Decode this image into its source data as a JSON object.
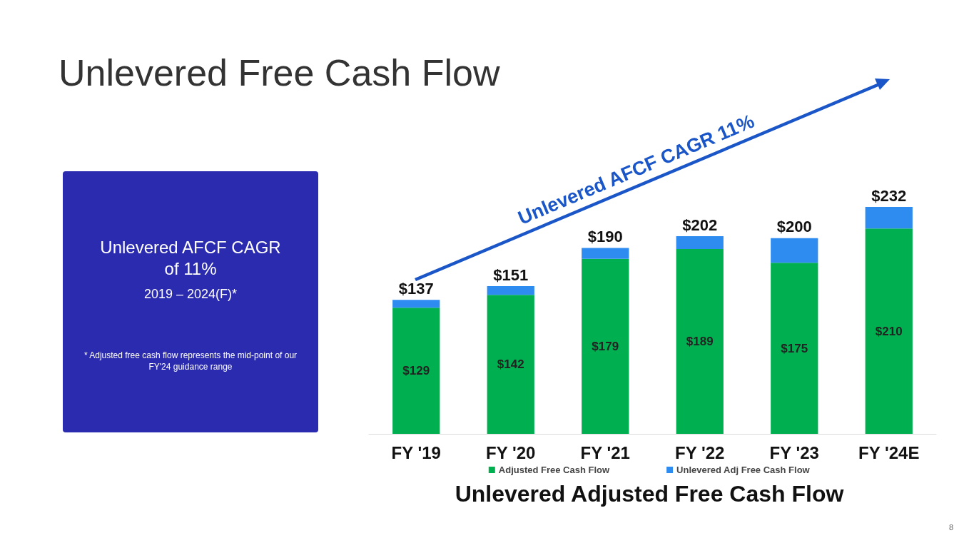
{
  "chart_data": {
    "type": "bar",
    "title": "Unlevered Free Cash Flow",
    "xlabel": "Unlevered Adjusted Free Cash Flow",
    "categories": [
      "FY '19",
      "FY '20",
      "FY '21",
      "FY '22",
      "FY '23",
      "FY '24E"
    ],
    "stacked": true,
    "legend": "bottom",
    "grid": false,
    "series": [
      {
        "name": "Adjusted Free Cash Flow",
        "color": "#00b050",
        "values": [
          129,
          142,
          179,
          189,
          175,
          210
        ],
        "value_labels": [
          "$129",
          "$142",
          "$179",
          "$189",
          "$175",
          "$210"
        ]
      },
      {
        "name": "Unlevered Adj Free Cash Flow",
        "color": "#2e8bf0",
        "values": [
          8,
          9,
          11,
          13,
          25,
          22
        ]
      }
    ],
    "totals": [
      "$137",
      "$151",
      "$190",
      "$202",
      "$200",
      "$232"
    ],
    "annotations": [
      "Unlevered AFCF CAGR of 11%",
      "2019 – 2024(F)*",
      "* Adjusted free cash flow represents the mid-point of our FY'24 guidance range",
      "Unlevered AFCF CAGR 11%",
      "8"
    ]
  }
}
